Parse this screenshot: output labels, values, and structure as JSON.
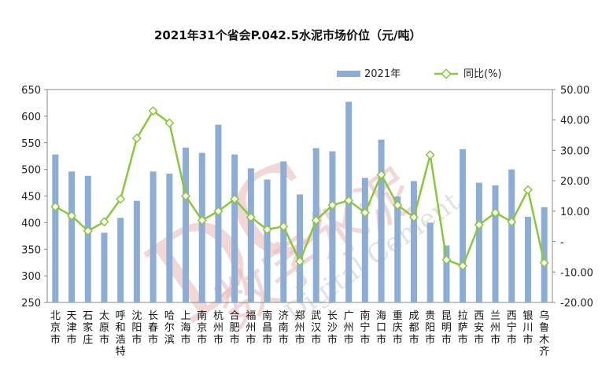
{
  "chart_data": {
    "title": "2021年31个省会P.042.5水泥市场价位（元/吨）",
    "type": "bar+line",
    "categories": [
      "北京市",
      "天津市",
      "石家庄",
      "太原市",
      "呼和浩特",
      "沈阳市",
      "长春市",
      "哈尔滨",
      "上海市",
      "南京市",
      "杭州市",
      "合肥市",
      "福州市",
      "南昌市",
      "济南市",
      "郑州市",
      "武汉市",
      "长沙市",
      "广州市",
      "南宁市",
      "海口市",
      "重庆市",
      "成都市",
      "贵阳市",
      "昆明市",
      "拉萨市",
      "西安市",
      "兰州市",
      "西宁市",
      "银川市",
      "乌鲁木齐"
    ],
    "series": [
      {
        "name": "2021年",
        "type": "bar",
        "axis": "left",
        "color": "#8eadd4",
        "values": [
          528,
          496,
          488,
          381,
          409,
          441,
          496,
          492,
          541,
          531,
          584,
          528,
          502,
          481,
          515,
          453,
          540,
          534,
          627,
          484,
          556,
          449,
          478,
          400,
          357,
          538,
          475,
          470,
          500,
          411,
          429
        ]
      },
      {
        "name": "同比(%)",
        "type": "line",
        "axis": "right",
        "color": "#8cc63f",
        "values": [
          11.5,
          8.5,
          3.5,
          6.5,
          14.0,
          34.0,
          43.0,
          39.0,
          15.0,
          7.0,
          10.0,
          14.0,
          8.0,
          4.0,
          5.0,
          -6.5,
          7.0,
          12.0,
          13.5,
          9.5,
          22.0,
          12.0,
          8.0,
          28.5,
          -6.0,
          -8.0,
          5.5,
          9.5,
          6.5,
          17.0,
          -7.0
        ]
      }
    ],
    "ylim_left": [
      250,
      650
    ],
    "yticks_left": [
      "650",
      "600",
      "550",
      "500",
      "450",
      "400",
      "350",
      "300",
      "250"
    ],
    "ylim_right": [
      -20,
      50
    ],
    "yticks_right": [
      "50.00",
      "40.00",
      "30.00",
      "20.00",
      "10.00",
      "-",
      "-10.00",
      "-20.00"
    ],
    "legend": [
      "2021年",
      "同比(%)"
    ],
    "grid": false
  },
  "watermark": {
    "line1": "DC",
    "line2": "数字水泥",
    "line3": "Digital Cement"
  }
}
